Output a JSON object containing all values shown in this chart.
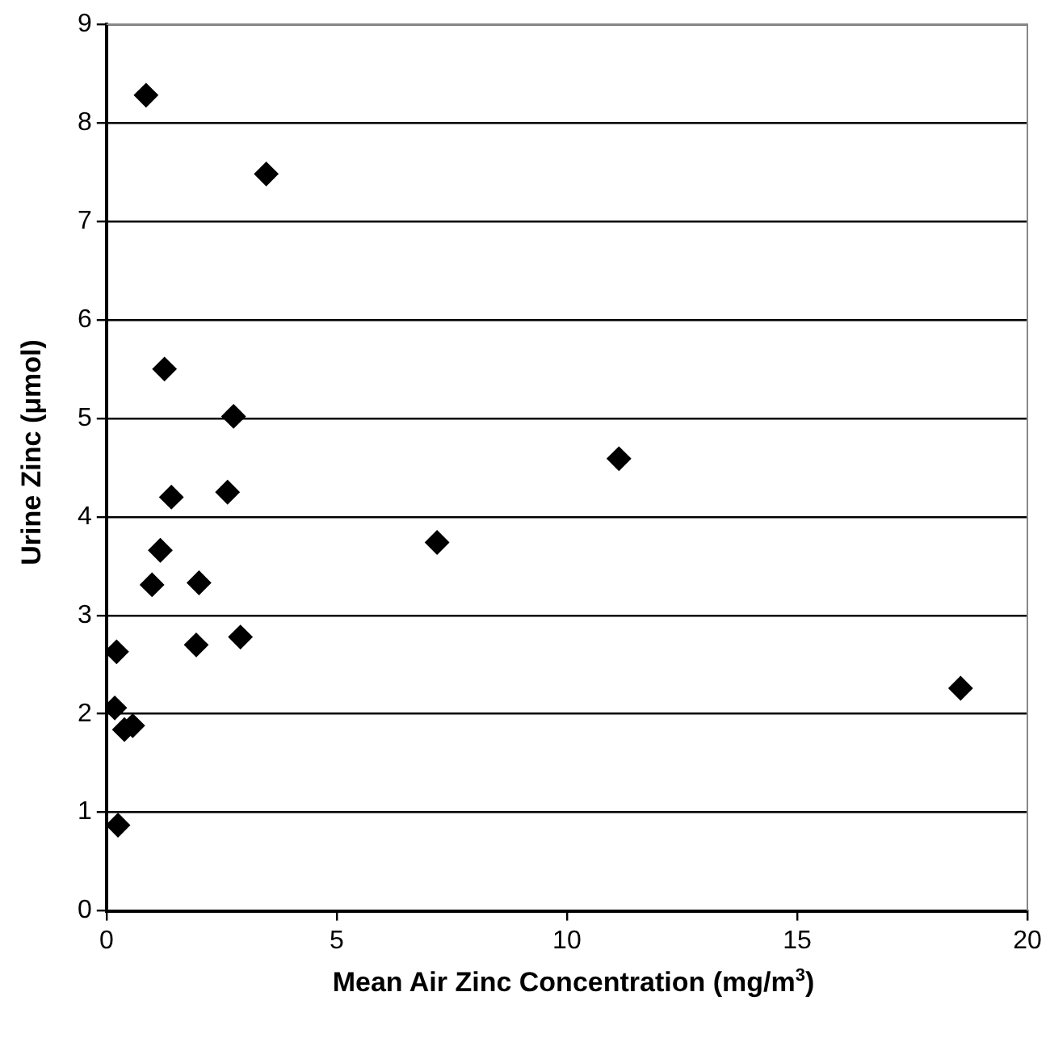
{
  "chart_data": {
    "type": "scatter",
    "xlabel": "Mean Air Zinc Concentration (mg/m$^{3}$)",
    "ylabel": "Urine Zinc (μmol)",
    "x": [
      0.86,
      3.47,
      1.26,
      2.76,
      1.41,
      2.63,
      1.17,
      0.99,
      2.01,
      1.95,
      2.91,
      0.22,
      0.18,
      0.39,
      0.57,
      0.25,
      11.13,
      7.18,
      18.55
    ],
    "values": [
      8.28,
      7.48,
      5.5,
      5.02,
      4.2,
      4.25,
      3.66,
      3.31,
      3.33,
      2.7,
      2.78,
      2.63,
      2.06,
      1.84,
      1.88,
      0.87,
      4.59,
      3.74,
      2.26
    ],
    "color": "#000000",
    "marker": "diamond",
    "grid": "y",
    "xlim": [
      0,
      20
    ],
    "xticks": [
      0,
      5,
      10,
      15,
      20
    ],
    "ylim": [
      0,
      9
    ],
    "yticks": [
      0,
      1,
      2,
      3,
      4,
      5,
      6,
      7,
      8,
      9
    ]
  }
}
